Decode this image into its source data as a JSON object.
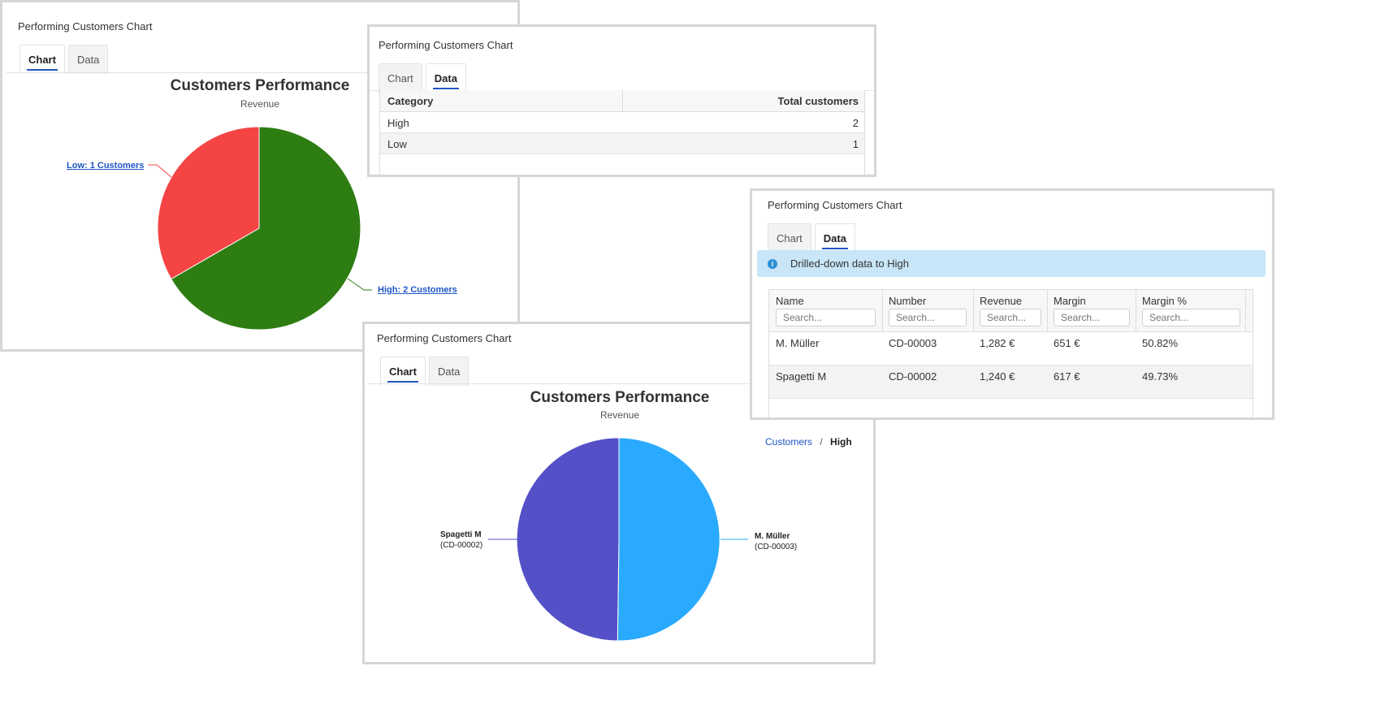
{
  "panel_title": "Performing Customers Chart",
  "tabs": {
    "chart": "Chart",
    "data": "Data"
  },
  "chart1": {
    "title": "Customers Performance",
    "subtitle": "Revenue",
    "colors": {
      "High": "#2e7d12",
      "Low": "#f44444"
    },
    "labels": {
      "low": "Low: 1 Customers",
      "high": "High: 2 Customers"
    }
  },
  "table1": {
    "headers": [
      "Category",
      "Total customers"
    ],
    "rows": [
      [
        "High",
        "2"
      ],
      [
        "Low",
        "1"
      ]
    ]
  },
  "drill": {
    "info": "Drilled-down data to High",
    "headers": [
      "Name",
      "Number",
      "Revenue",
      "Margin",
      "Margin %"
    ],
    "search_placeholder": "Search...",
    "rows": [
      [
        "M. Müller",
        "CD-00003",
        "1,282 €",
        "651 €",
        "50.82%"
      ],
      [
        "Spagetti M",
        "CD-00002",
        "1,240 €",
        "617 €",
        "49.73%"
      ]
    ]
  },
  "chart2": {
    "title": "Customers Performance",
    "subtitle": "Revenue",
    "breadcrumb": {
      "root": "Customers",
      "sep": "/",
      "current": "High"
    },
    "colors": {
      "M. Müller": "#2aaaff",
      "Spagetti M": "#5450c8"
    },
    "labels": {
      "left_name": "Spagetti M",
      "left_id": "(CD-00002)",
      "right_name": "M. Müller",
      "right_id": "(CD-00003)"
    }
  },
  "chart_data": [
    {
      "type": "pie",
      "title": "Customers Performance",
      "subtitle": "Revenue",
      "categories": [
        "High",
        "Low"
      ],
      "values": [
        2,
        1
      ]
    },
    {
      "type": "pie",
      "title": "Customers Performance",
      "subtitle": "Revenue",
      "categories": [
        "M. Müller",
        "Spagetti M"
      ],
      "values": [
        1282,
        1240
      ]
    }
  ]
}
